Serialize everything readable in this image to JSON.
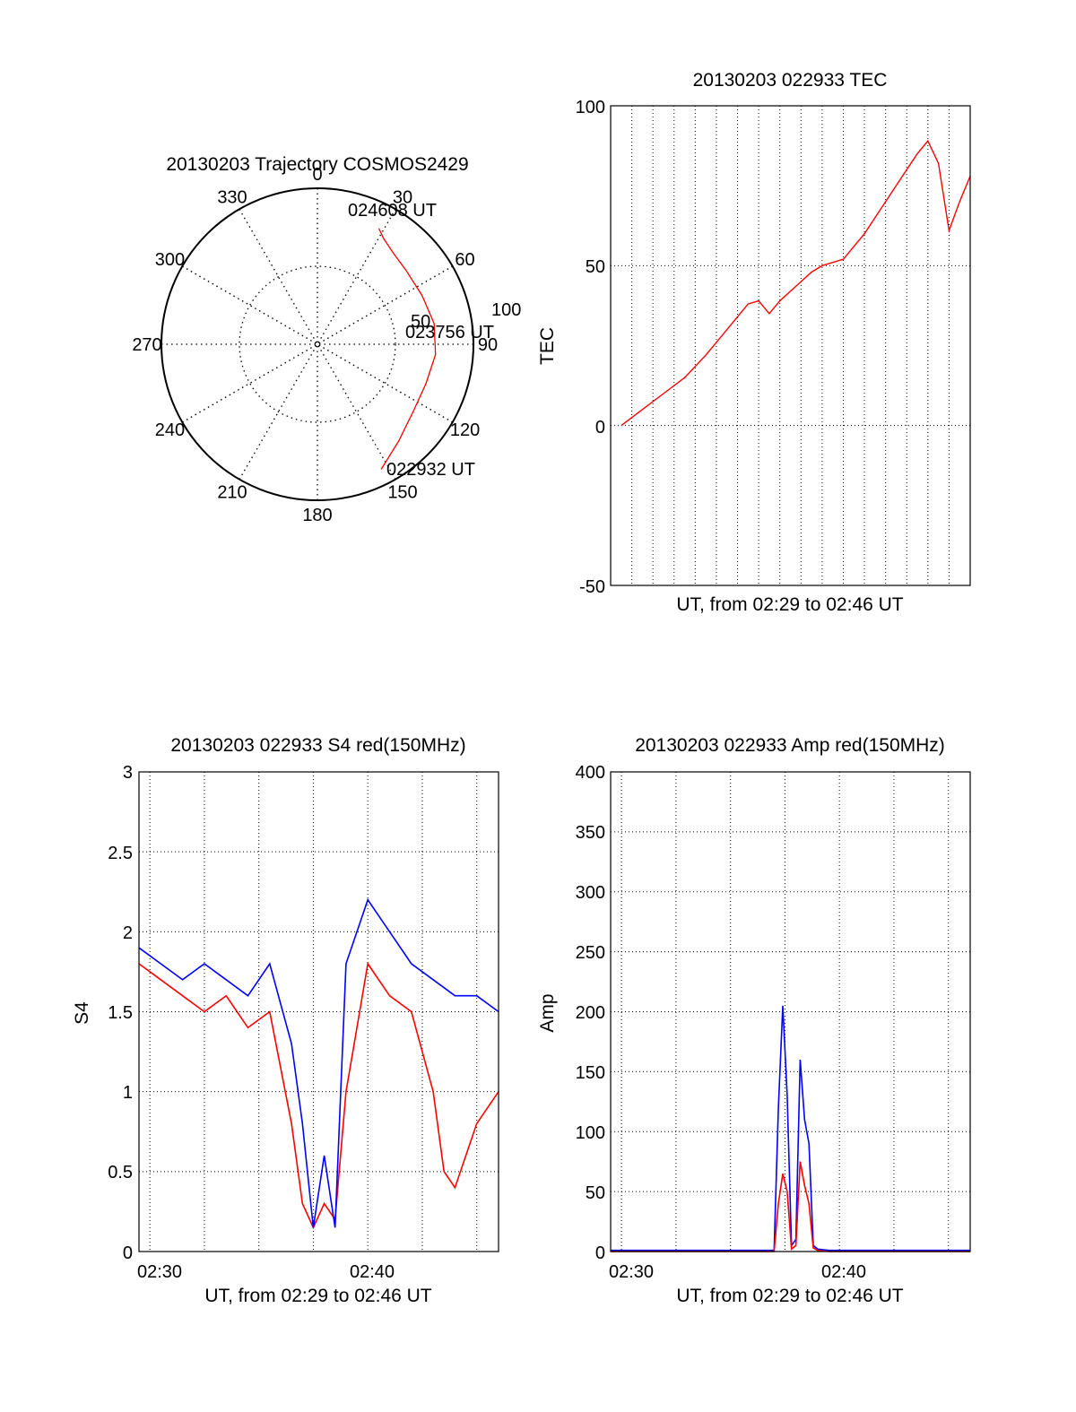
{
  "chart_data": [
    {
      "type": "polar",
      "title": "20130203 Trajectory COSMOS2429",
      "angle_ticks": [
        "0",
        "30",
        "60",
        "90",
        "120",
        "150",
        "180",
        "210",
        "240",
        "270",
        "300",
        "330"
      ],
      "radial_ticks": [
        "50",
        "100"
      ],
      "rmax": 100,
      "trajectory": {
        "color": "#ff0000",
        "points": [
          [
            153,
            90
          ],
          [
            140,
            81
          ],
          [
            125,
            75
          ],
          [
            110,
            74
          ],
          [
            95,
            76
          ],
          [
            80,
            76
          ],
          [
            65,
            74
          ],
          [
            50,
            74
          ],
          [
            40,
            76
          ],
          [
            32,
            80
          ],
          [
            28,
            84
          ]
        ]
      },
      "labels": [
        {
          "text": "024608 UT",
          "at": "end"
        },
        {
          "text": "023756 UT",
          "at": "mid"
        },
        {
          "text": "022932 UT",
          "at": "start"
        }
      ],
      "colors": {
        "trajectory": "#ff0000",
        "frame": "#000000"
      }
    },
    {
      "type": "line",
      "title": "20130203 022933 TEC",
      "xlabel": "UT, from 02:29 to 02:46 UT",
      "ylabel": "TEC",
      "xlim": [
        29.0,
        46.0
      ],
      "ylim": [
        -50,
        100
      ],
      "yticks": [
        "100",
        "50",
        "0",
        "-50"
      ],
      "grid": true,
      "series": [
        {
          "color": "#ff0000",
          "x": [
            29.5,
            30.5,
            31.5,
            32.5,
            33.5,
            34.5,
            35.5,
            36.0,
            36.5,
            37.0,
            37.5,
            38.5,
            39.0,
            40.0,
            41.0,
            42.0,
            43.0,
            43.5,
            44.0,
            44.5,
            45.0,
            45.5,
            46.0
          ],
          "y": [
            0,
            5,
            10,
            15,
            22,
            30,
            38,
            39,
            35,
            39,
            42,
            48,
            50,
            52,
            60,
            70,
            80,
            85,
            89,
            82,
            61,
            70,
            78
          ]
        }
      ]
    },
    {
      "type": "line",
      "title": "20130203 022933 S4 red(150MHz)",
      "xlabel": "UT, from 02:29 to 02:46 UT",
      "ylabel": "S4",
      "xlim": [
        29.5,
        46.0
      ],
      "ylim": [
        0,
        3
      ],
      "xticks": [
        "02:30",
        "02:40"
      ],
      "yticks": [
        "3",
        "2.5",
        "2",
        "1.5",
        "1",
        "0.5",
        "0"
      ],
      "grid": true,
      "series": [
        {
          "color": "#ff0000",
          "x": [
            29.5,
            30.5,
            31.5,
            32.5,
            33.5,
            34.5,
            35.5,
            36.5,
            37.0,
            37.5,
            38.0,
            38.5,
            39.0,
            40.0,
            41.0,
            42.0,
            43.0,
            43.5,
            44.0,
            45.0,
            46.0
          ],
          "y": [
            1.8,
            1.7,
            1.6,
            1.5,
            1.6,
            1.4,
            1.5,
            0.8,
            0.3,
            0.15,
            0.3,
            0.2,
            1.0,
            1.8,
            1.6,
            1.5,
            1.0,
            0.5,
            0.4,
            0.8,
            1.0
          ]
        },
        {
          "color": "#0000ff",
          "x": [
            29.5,
            30.5,
            31.5,
            32.5,
            33.5,
            34.5,
            35.5,
            36.5,
            37.0,
            37.5,
            38.0,
            38.5,
            39.0,
            40.0,
            41.0,
            42.0,
            43.0,
            44.0,
            45.0,
            46.0
          ],
          "y": [
            1.9,
            1.8,
            1.7,
            1.8,
            1.7,
            1.6,
            1.8,
            1.3,
            0.8,
            0.15,
            0.6,
            0.15,
            1.8,
            2.2,
            2.0,
            1.8,
            1.7,
            1.6,
            1.6,
            1.5
          ]
        }
      ]
    },
    {
      "type": "line",
      "title": "20130203 022933 Amp red(150MHz)",
      "xlabel": "UT, from 02:29 to 02:46 UT",
      "ylabel": "Amp",
      "xlim": [
        29.5,
        46.0
      ],
      "ylim": [
        0,
        400
      ],
      "xticks": [
        "02:30",
        "02:40"
      ],
      "yticks": [
        "400",
        "350",
        "300",
        "250",
        "200",
        "150",
        "100",
        "50",
        "0"
      ],
      "grid": true,
      "series": [
        {
          "color": "#0000ff",
          "x": [
            29.5,
            37.0,
            37.2,
            37.4,
            37.6,
            37.8,
            38.0,
            38.2,
            38.4,
            38.6,
            38.8,
            39.0,
            39.5,
            46.0
          ],
          "y": [
            1,
            1,
            120,
            205,
            130,
            5,
            10,
            160,
            110,
            90,
            5,
            2,
            1,
            1
          ]
        },
        {
          "color": "#ff0000",
          "x": [
            29.5,
            37.0,
            37.2,
            37.4,
            37.6,
            37.8,
            38.0,
            38.2,
            38.4,
            38.6,
            38.8,
            39.0,
            39.5,
            46.0
          ],
          "y": [
            0,
            0,
            40,
            65,
            50,
            2,
            5,
            75,
            55,
            40,
            3,
            1,
            0,
            0
          ]
        }
      ]
    }
  ]
}
